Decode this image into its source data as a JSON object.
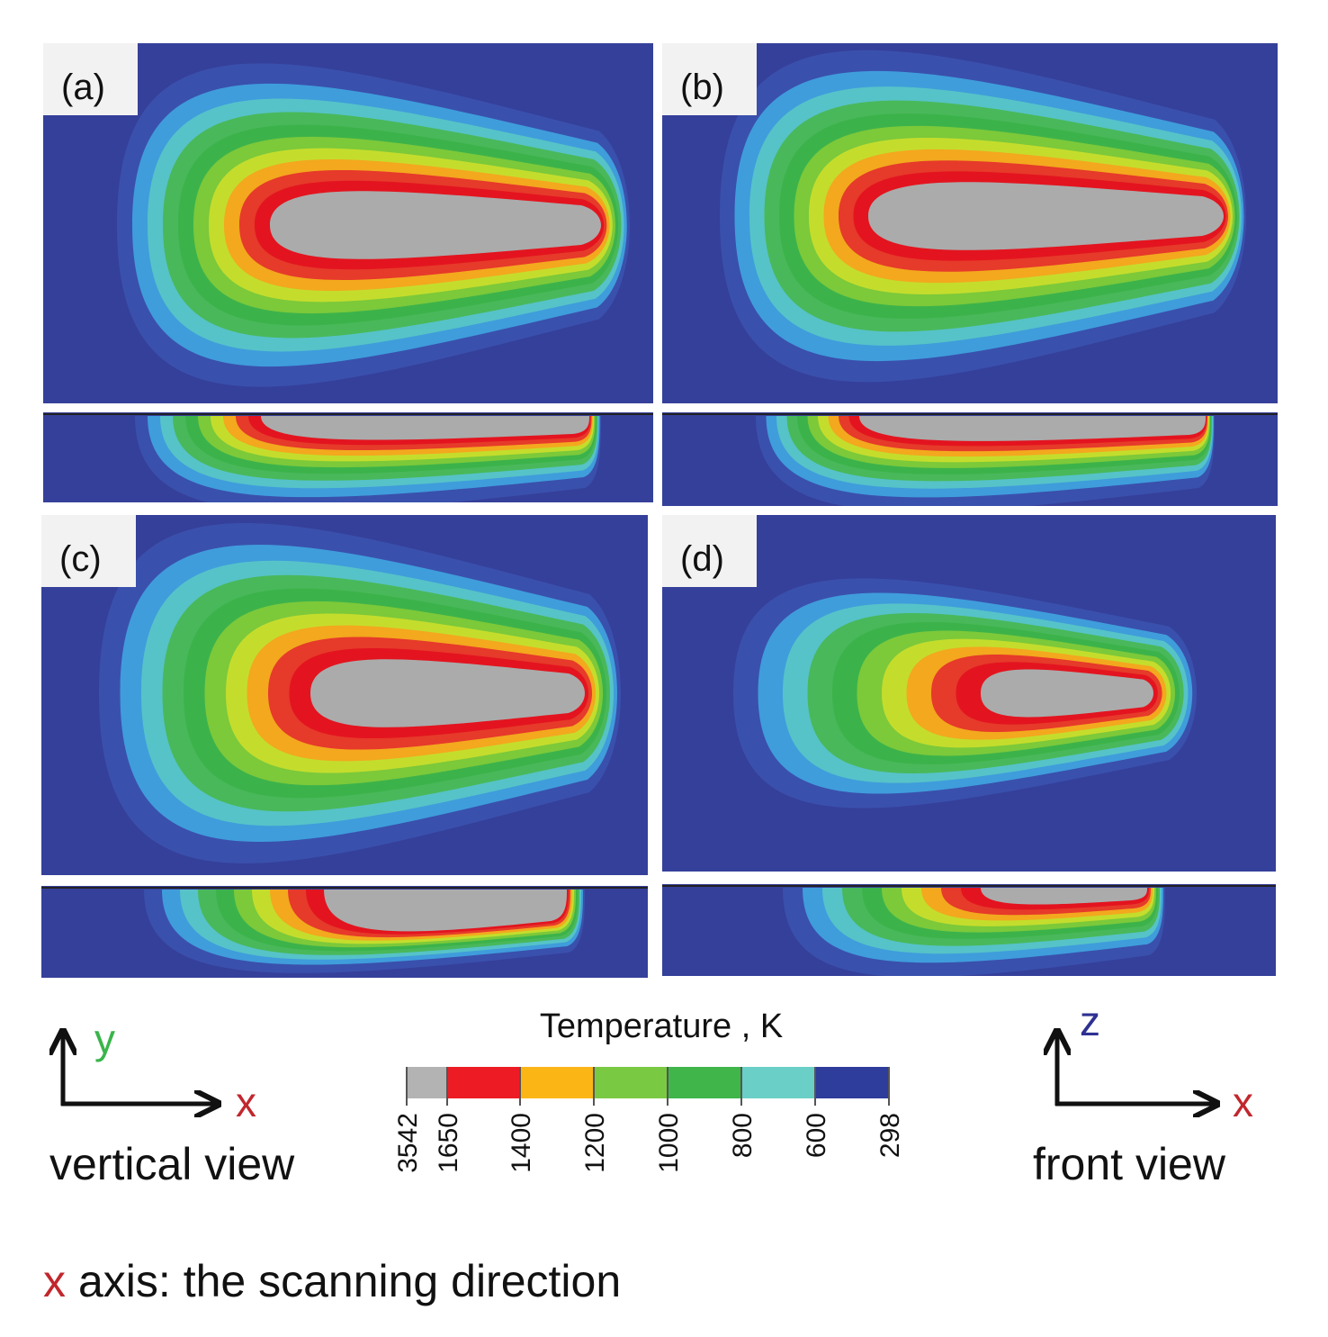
{
  "panels": [
    {
      "label": "(a)"
    },
    {
      "label": "(b)"
    },
    {
      "label": "(c)"
    },
    {
      "label": "(d)"
    }
  ],
  "legend": {
    "title": "Temperature , K",
    "ticks": [
      3542,
      1650,
      1400,
      1200,
      1000,
      800,
      600,
      298
    ],
    "colors": [
      "#b3b3b3",
      "#ed1c24",
      "#fbb616",
      "#7ac943",
      "#3fb54a",
      "#6acfc6",
      "#2e3c9b"
    ]
  },
  "vertical_view": {
    "axis_y": "y",
    "axis_x": "x",
    "label": "vertical view"
  },
  "front_view": {
    "axis_z": "z",
    "axis_x": "x",
    "label": "front view"
  },
  "note": {
    "axis": "x",
    "text": "axis: the scanning direction"
  }
}
